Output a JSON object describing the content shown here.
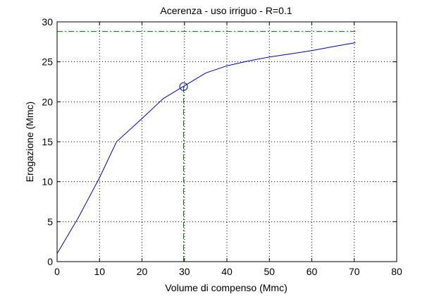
{
  "chart_data": {
    "type": "line",
    "title": "Acerenza  -  uso irriguo  -   R=0.1",
    "xlabel": "Volume di compenso (Mmc)",
    "ylabel": "Erogazione (Mmc)",
    "xlim": [
      0,
      80
    ],
    "ylim": [
      0,
      30
    ],
    "xticks": [
      0,
      10,
      20,
      30,
      40,
      50,
      60,
      70,
      80
    ],
    "yticks": [
      0,
      5,
      10,
      15,
      20,
      25,
      30
    ],
    "grid": true,
    "series": [
      {
        "x": [
          0,
          5,
          10,
          14,
          20,
          25,
          30,
          35,
          40,
          45,
          50,
          55,
          60,
          65,
          70.3
        ],
        "y": [
          1,
          5.5,
          10.5,
          15,
          17.9,
          20.4,
          22,
          23.6,
          24.5,
          25.1,
          25.6,
          26.0,
          26.4,
          26.9,
          27.4
        ]
      }
    ],
    "marker": {
      "x": 29.8,
      "y": 21.9
    },
    "hline": {
      "y": 28.8,
      "x_end": 70.3
    },
    "vline": {
      "x": 29.8,
      "y_end": 21.9
    },
    "colors": {
      "series": "#0000cc",
      "reference": "#007a00",
      "grid": "#000000"
    }
  }
}
